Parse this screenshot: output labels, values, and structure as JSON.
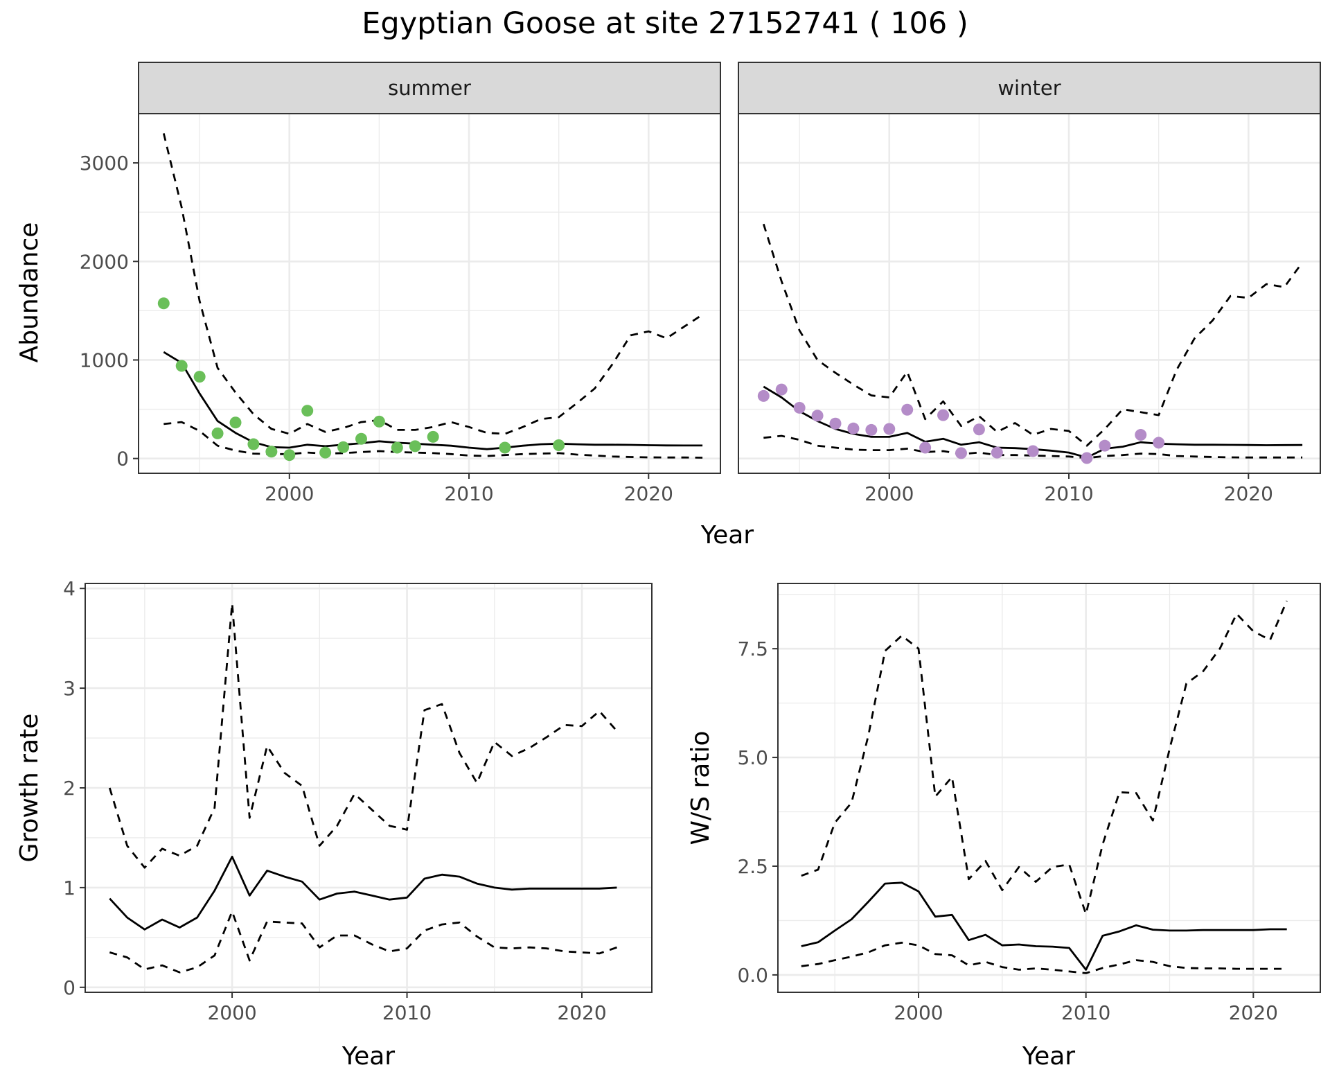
{
  "title": "Egyptian Goose at site 27152741 ( 106 )",
  "colors": {
    "summer_points": "#6abf59",
    "winter_points": "#b48cc8",
    "line": "#000000",
    "strip_bg": "#d9d9d9",
    "grid": "#ebebeb"
  },
  "chart_data": [
    {
      "type": "line",
      "panel": "summer",
      "strip_label": "summer",
      "xlabel": "Year",
      "ylabel": "Abundance",
      "xlim": [
        1991.6,
        2024.0
      ],
      "ylim": [
        -150,
        3500
      ],
      "x_ticks": [
        2000,
        2010,
        2020
      ],
      "y_ticks": [
        0,
        1000,
        2000,
        3000
      ],
      "grid": true,
      "series": [
        {
          "style": "solid",
          "x": [
            1993,
            1994,
            1995,
            1996,
            1997,
            1998,
            1999,
            2000,
            2001,
            2002,
            2003,
            2004,
            2005,
            2006,
            2007,
            2008,
            2009,
            2010,
            2011,
            2012,
            2013,
            2014,
            2015,
            2016,
            2017,
            2018,
            2019,
            2020,
            2021,
            2022,
            2023
          ],
          "values": [
            1080,
            970,
            660,
            380,
            260,
            165,
            115,
            110,
            140,
            125,
            140,
            155,
            175,
            160,
            150,
            140,
            130,
            110,
            95,
            110,
            130,
            145,
            150,
            145,
            140,
            140,
            138,
            135,
            133,
            132,
            132
          ]
        },
        {
          "style": "dashed",
          "x": [
            1993,
            1994,
            1995,
            1996,
            1997,
            1998,
            1999,
            2000,
            2001,
            2002,
            2003,
            2004,
            2005,
            2006,
            2007,
            2008,
            2009,
            2010,
            2011,
            2012,
            2013,
            2014,
            2015,
            2016,
            2017,
            2018,
            2019,
            2020,
            2021,
            2022,
            2023
          ],
          "values": [
            3300,
            2550,
            1600,
            920,
            670,
            450,
            300,
            250,
            350,
            270,
            310,
            370,
            390,
            290,
            290,
            320,
            370,
            320,
            260,
            250,
            320,
            400,
            420,
            560,
            710,
            960,
            1250,
            1290,
            1220,
            1340,
            1460
          ]
        },
        {
          "style": "dashed",
          "x": [
            1993,
            1994,
            1995,
            1996,
            1997,
            1998,
            1999,
            2000,
            2001,
            2002,
            2003,
            2004,
            2005,
            2006,
            2007,
            2008,
            2009,
            2010,
            2011,
            2012,
            2013,
            2014,
            2015,
            2016,
            2017,
            2018,
            2019,
            2020,
            2021,
            2022,
            2023
          ],
          "values": [
            350,
            370,
            280,
            130,
            80,
            50,
            45,
            45,
            60,
            50,
            55,
            65,
            75,
            65,
            60,
            55,
            45,
            30,
            25,
            35,
            45,
            50,
            55,
            40,
            30,
            20,
            15,
            12,
            10,
            10,
            8
          ]
        },
        {
          "style": "points",
          "x": [
            1993,
            1994,
            1995,
            1996,
            1997,
            1998,
            1999,
            2000,
            2001,
            2002,
            2003,
            2004,
            2005,
            2006,
            2007,
            2008,
            2012,
            2015
          ],
          "values": [
            1575,
            940,
            830,
            255,
            365,
            145,
            70,
            35,
            485,
            60,
            115,
            200,
            375,
            110,
            125,
            220,
            110,
            135
          ]
        }
      ]
    },
    {
      "type": "line",
      "panel": "winter",
      "strip_label": "winter",
      "xlabel": "Year",
      "ylabel": "Abundance",
      "xlim": [
        1991.6,
        2024.0
      ],
      "ylim": [
        -150,
        3500
      ],
      "x_ticks": [
        2000,
        2010,
        2020
      ],
      "y_ticks": [
        0,
        1000,
        2000,
        3000
      ],
      "grid": true,
      "series": [
        {
          "style": "solid",
          "x": [
            1993,
            1994,
            1995,
            1996,
            1997,
            1998,
            1999,
            2000,
            2001,
            2002,
            2003,
            2004,
            2005,
            2006,
            2007,
            2008,
            2009,
            2010,
            2011,
            2012,
            2013,
            2014,
            2015,
            2016,
            2017,
            2018,
            2019,
            2020,
            2021,
            2022,
            2023
          ],
          "values": [
            730,
            620,
            480,
            380,
            300,
            250,
            220,
            220,
            260,
            170,
            200,
            140,
            165,
            110,
            105,
            95,
            80,
            60,
            10,
            100,
            120,
            165,
            150,
            145,
            140,
            140,
            138,
            137,
            135,
            136,
            137
          ]
        },
        {
          "style": "dashed",
          "x": [
            1993,
            1994,
            1995,
            1996,
            1997,
            1998,
            1999,
            2000,
            2001,
            2002,
            2003,
            2004,
            2005,
            2006,
            2007,
            2008,
            2009,
            2010,
            2011,
            2012,
            2013,
            2014,
            2015,
            2016,
            2017,
            2018,
            2019,
            2020,
            2021,
            2022,
            2023
          ],
          "values": [
            2380,
            1800,
            1300,
            1000,
            870,
            750,
            640,
            620,
            880,
            400,
            580,
            330,
            430,
            270,
            360,
            240,
            300,
            280,
            130,
            300,
            500,
            470,
            440,
            900,
            1220,
            1400,
            1650,
            1630,
            1770,
            1740,
            1990
          ]
        },
        {
          "style": "dashed",
          "x": [
            1993,
            1994,
            1995,
            1996,
            1997,
            1998,
            1999,
            2000,
            2001,
            2002,
            2003,
            2004,
            2005,
            2006,
            2007,
            2008,
            2009,
            2010,
            2011,
            2012,
            2013,
            2014,
            2015,
            2016,
            2017,
            2018,
            2019,
            2020,
            2021,
            2022,
            2023
          ],
          "values": [
            210,
            230,
            190,
            130,
            110,
            90,
            85,
            85,
            100,
            65,
            75,
            45,
            60,
            35,
            35,
            30,
            25,
            20,
            5,
            25,
            35,
            50,
            45,
            25,
            20,
            15,
            12,
            10,
            10,
            10,
            10
          ]
        },
        {
          "style": "points",
          "x": [
            1993,
            1994,
            1995,
            1996,
            1997,
            1998,
            1999,
            2000,
            2001,
            2002,
            2003,
            2004,
            2005,
            2006,
            2008,
            2011,
            2012,
            2014,
            2015
          ],
          "values": [
            635,
            700,
            515,
            435,
            355,
            305,
            290,
            300,
            495,
            110,
            440,
            55,
            295,
            60,
            75,
            5,
            130,
            240,
            160
          ]
        }
      ]
    },
    {
      "type": "line",
      "panel": "growth",
      "xlabel": "Year",
      "ylabel": "Growth rate",
      "xlim": [
        1991.6,
        2024.0
      ],
      "ylim": [
        -0.05,
        4.05
      ],
      "x_ticks": [
        2000,
        2010,
        2020
      ],
      "y_ticks": [
        0,
        1,
        2,
        3,
        4
      ],
      "grid": true,
      "series": [
        {
          "style": "solid",
          "x": [
            1993,
            1994,
            1995,
            1996,
            1997,
            1998,
            1999,
            2000,
            2001,
            2002,
            2003,
            2004,
            2005,
            2006,
            2007,
            2008,
            2009,
            2010,
            2011,
            2012,
            2013,
            2014,
            2015,
            2016,
            2017,
            2018,
            2019,
            2020,
            2021,
            2022
          ],
          "values": [
            0.89,
            0.7,
            0.58,
            0.68,
            0.6,
            0.7,
            0.97,
            1.31,
            0.92,
            1.17,
            1.11,
            1.06,
            0.88,
            0.94,
            0.96,
            0.92,
            0.88,
            0.9,
            1.09,
            1.13,
            1.11,
            1.04,
            1.0,
            0.98,
            0.99,
            0.99,
            0.99,
            0.99,
            0.99,
            1.0
          ]
        },
        {
          "style": "dashed",
          "x": [
            1993,
            1994,
            1995,
            1996,
            1997,
            1998,
            1999,
            2000,
            2001,
            2002,
            2003,
            2004,
            2005,
            2006,
            2007,
            2008,
            2009,
            2010,
            2011,
            2012,
            2013,
            2014,
            2015,
            2016,
            2017,
            2018,
            2019,
            2020,
            2021,
            2022
          ],
          "values": [
            2.0,
            1.42,
            1.2,
            1.39,
            1.32,
            1.42,
            1.8,
            3.85,
            1.7,
            2.42,
            2.15,
            2.02,
            1.42,
            1.62,
            1.94,
            1.78,
            1.62,
            1.58,
            2.78,
            2.84,
            2.35,
            2.05,
            2.46,
            2.32,
            2.4,
            2.51,
            2.63,
            2.62,
            2.77,
            2.57
          ]
        },
        {
          "style": "dashed",
          "x": [
            1993,
            1994,
            1995,
            1996,
            1997,
            1998,
            1999,
            2000,
            2001,
            2002,
            2003,
            2004,
            2005,
            2006,
            2007,
            2008,
            2009,
            2010,
            2011,
            2012,
            2013,
            2014,
            2015,
            2016,
            2017,
            2018,
            2019,
            2020,
            2021,
            2022
          ],
          "values": [
            0.35,
            0.3,
            0.18,
            0.22,
            0.15,
            0.2,
            0.32,
            0.76,
            0.27,
            0.66,
            0.65,
            0.64,
            0.4,
            0.52,
            0.52,
            0.43,
            0.36,
            0.39,
            0.57,
            0.63,
            0.65,
            0.51,
            0.4,
            0.39,
            0.4,
            0.39,
            0.36,
            0.35,
            0.34,
            0.4
          ]
        }
      ]
    },
    {
      "type": "line",
      "panel": "ratio",
      "xlabel": "Year",
      "ylabel": "W/S ratio",
      "xlim": [
        1991.6,
        2024.0
      ],
      "ylim": [
        -0.4,
        9.0
      ],
      "x_ticks": [
        2000,
        2010,
        2020
      ],
      "y_ticks": [
        0.0,
        2.5,
        5.0,
        7.5
      ],
      "y_tick_labels": [
        "0.0",
        "2.5",
        "5.0",
        "7.5"
      ],
      "grid": true,
      "series": [
        {
          "style": "solid",
          "x": [
            1993,
            1994,
            1995,
            1996,
            1997,
            1998,
            1999,
            2000,
            2001,
            2002,
            2003,
            2004,
            2005,
            2006,
            2007,
            2008,
            2009,
            2010,
            2011,
            2012,
            2013,
            2014,
            2015,
            2016,
            2017,
            2018,
            2019,
            2020,
            2021,
            2022
          ],
          "values": [
            0.66,
            0.75,
            1.02,
            1.28,
            1.68,
            2.1,
            2.12,
            1.92,
            1.34,
            1.38,
            0.8,
            0.92,
            0.68,
            0.7,
            0.66,
            0.65,
            0.62,
            0.12,
            0.9,
            1.0,
            1.14,
            1.04,
            1.02,
            1.02,
            1.03,
            1.03,
            1.03,
            1.03,
            1.05,
            1.05
          ]
        },
        {
          "style": "dashed",
          "x": [
            1993,
            1994,
            1995,
            1996,
            1997,
            1998,
            1999,
            2000,
            2001,
            2002,
            2003,
            2004,
            2005,
            2006,
            2007,
            2008,
            2009,
            2010,
            2011,
            2012,
            2013,
            2014,
            2015,
            2016,
            2017,
            2018,
            2019,
            2020,
            2021,
            2022
          ],
          "values": [
            2.28,
            2.42,
            3.5,
            3.96,
            5.5,
            7.45,
            7.8,
            7.5,
            4.1,
            4.55,
            2.2,
            2.62,
            1.95,
            2.48,
            2.14,
            2.48,
            2.54,
            1.4,
            3.0,
            4.2,
            4.18,
            3.55,
            5.2,
            6.7,
            6.98,
            7.5,
            8.3,
            7.9,
            7.7,
            8.6
          ]
        },
        {
          "style": "dashed",
          "x": [
            1993,
            1994,
            1995,
            1996,
            1997,
            1998,
            1999,
            2000,
            2001,
            2002,
            2003,
            2004,
            2005,
            2006,
            2007,
            2008,
            2009,
            2010,
            2011,
            2012,
            2013,
            2014,
            2015,
            2016,
            2017,
            2018,
            2019,
            2020,
            2021,
            2022
          ],
          "values": [
            0.2,
            0.25,
            0.34,
            0.42,
            0.52,
            0.68,
            0.74,
            0.68,
            0.48,
            0.45,
            0.22,
            0.3,
            0.18,
            0.12,
            0.15,
            0.12,
            0.08,
            0.04,
            0.16,
            0.24,
            0.34,
            0.3,
            0.2,
            0.16,
            0.15,
            0.15,
            0.14,
            0.14,
            0.14,
            0.14
          ]
        }
      ]
    }
  ]
}
